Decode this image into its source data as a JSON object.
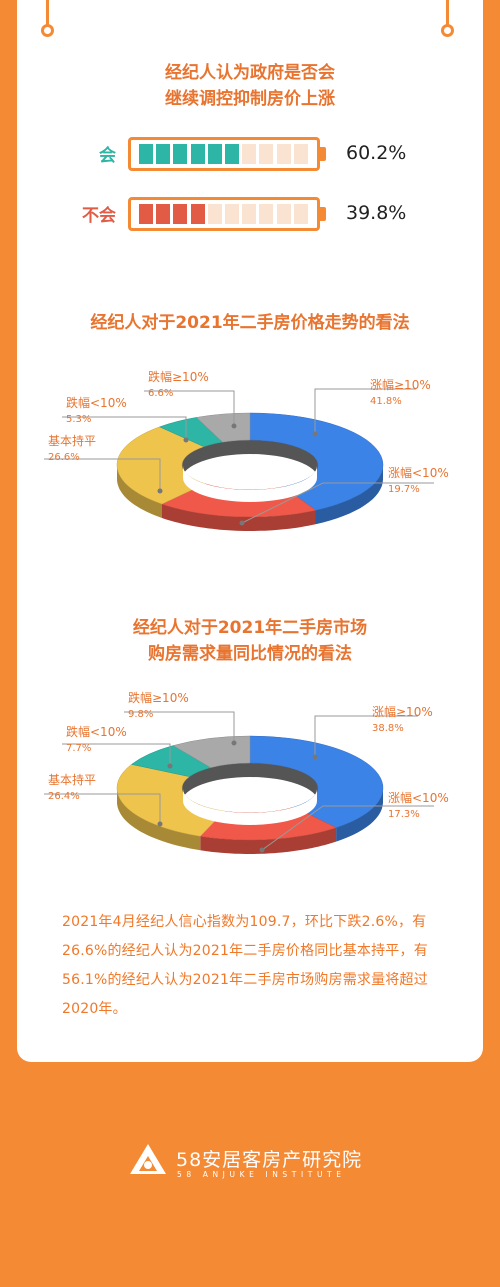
{
  "colors": {
    "background": "#F58A34",
    "accent": "#E87430",
    "yes": "#2DB5A5",
    "no": "#E25C45",
    "rise_large": "#3C83E8",
    "rise_small": "#F0594A",
    "flat": "#EFC44D",
    "fall_small": "#2DB5A5",
    "fall_large": "#A9A9A9"
  },
  "section1": {
    "title_lines": [
      "经纪人认为政府是否会",
      "继续调控抑制房价上涨"
    ],
    "rows": [
      {
        "label": "会",
        "value_text": "60.2%",
        "value": 60.2
      },
      {
        "label": "不会",
        "value_text": "39.8%",
        "value": 39.8
      }
    ]
  },
  "chart_data": [
    {
      "type": "pie",
      "title": "经纪人对于2021年二手房价格走势的看法",
      "categories": [
        "涨幅≥10%",
        "涨幅<10%",
        "基本持平",
        "跌幅<10%",
        "跌幅≥10%"
      ],
      "values": [
        41.8,
        19.7,
        26.6,
        5.3,
        6.6
      ],
      "value_labels": [
        "41.8%",
        "19.7%",
        "26.6%",
        "5.3%",
        "6.6%"
      ]
    },
    {
      "type": "pie",
      "title": "经纪人对于2021年二手房市场购房需求量同比情况的看法",
      "categories": [
        "涨幅≥10%",
        "涨幅<10%",
        "基本持平",
        "跌幅<10%",
        "跌幅≥10%"
      ],
      "values": [
        38.8,
        17.3,
        26.4,
        7.7,
        9.8
      ],
      "value_labels": [
        "38.8%",
        "17.3%",
        "26.4%",
        "7.7%",
        "9.8%"
      ]
    }
  ],
  "section2": {
    "title": "经纪人对于2021年二手房价格走势的看法"
  },
  "section3": {
    "title_lines": [
      "经纪人对于2021年二手房市场",
      "购房需求量同比情况的看法"
    ]
  },
  "summary": {
    "text": "2021年4月经纪人信心指数为109.7，环比下跌2.6%，有26.6%的经纪人认为2021年二手房价格同比基本持平，有56.1%的经纪人认为2021年二手房市场购房需求量将超过2020年。"
  },
  "footer": {
    "logo_name": "58安居客房产研究院",
    "logo_sub": "58 ANJUKE INSTITUTE"
  }
}
